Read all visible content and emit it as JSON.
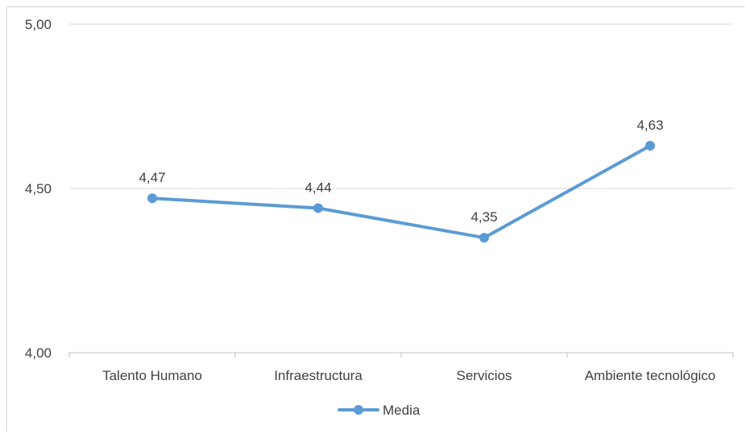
{
  "chart_data": {
    "type": "line",
    "categories": [
      "Talento Humano",
      "Infraestructura",
      "Servicios",
      "Ambiente tecnológico"
    ],
    "series": [
      {
        "name": "Media",
        "values": [
          4.47,
          4.44,
          4.35,
          4.63
        ],
        "color": "#5b9bd5"
      }
    ],
    "data_labels": [
      "4,47",
      "4,44",
      "4,35",
      "4,63"
    ],
    "y_ticks": [
      {
        "value": 5.0,
        "label": "5,00"
      },
      {
        "value": 4.5,
        "label": "4,50"
      },
      {
        "value": 4.0,
        "label": "4,00"
      }
    ],
    "ylim": [
      4.0,
      5.0
    ],
    "grid": true,
    "legend_position": "bottom",
    "gridline_color": "#d9d9d9",
    "axis_color": "#bfbfbf",
    "text_color": "#404040"
  }
}
